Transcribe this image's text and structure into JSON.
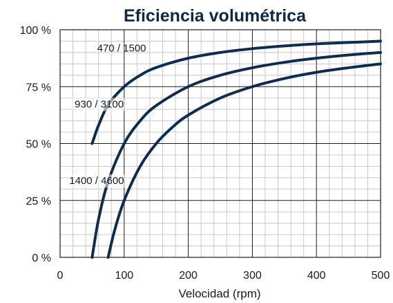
{
  "chart_data": {
    "type": "line",
    "title": "Eficiencia volumétrica",
    "xlabel": "Velocidad (rpm)",
    "ylabel": "",
    "xlim": [
      0,
      500
    ],
    "ylim": [
      0,
      100
    ],
    "x_ticks": [
      0,
      100,
      200,
      300,
      400,
      500
    ],
    "x_tick_labels": [
      "0",
      "100",
      "200",
      "300",
      "400",
      "500"
    ],
    "y_ticks": [
      0,
      25,
      50,
      75,
      100
    ],
    "y_tick_labels": [
      "0 %",
      "25 %",
      "50 %",
      "75 %",
      "100 %"
    ],
    "grid": true,
    "legend": "none",
    "colors": {
      "line": "#0d2d50",
      "major_grid": "#1a1a1a",
      "minor_grid": "#c8c8c8",
      "title": "#0b2a4a"
    },
    "series": [
      {
        "name": "470 / 1500",
        "x": [
          50,
          60,
          75,
          100,
          125,
          150,
          200,
          250,
          300,
          350,
          400,
          450,
          500
        ],
        "y": [
          50,
          58,
          67,
          75,
          80,
          83.4,
          87.5,
          90,
          91.7,
          92.9,
          93.8,
          94.4,
          95
        ]
      },
      {
        "name": "930 / 3100",
        "x": [
          50,
          60,
          75,
          100,
          125,
          150,
          200,
          250,
          300,
          350,
          400,
          450,
          500
        ],
        "y": [
          0,
          16.7,
          33.3,
          50,
          60,
          66.7,
          75,
          80,
          83.3,
          85.7,
          87.5,
          88.9,
          90
        ]
      },
      {
        "name": "1400 / 4600",
        "x": [
          75,
          85,
          100,
          125,
          150,
          175,
          200,
          250,
          300,
          350,
          400,
          450,
          500
        ],
        "y": [
          0,
          11.8,
          25,
          40,
          50,
          57.1,
          62.5,
          70,
          75,
          78.6,
          81.3,
          83.3,
          85
        ]
      }
    ],
    "annotations": [
      {
        "text": "470 / 1500",
        "series": 0
      },
      {
        "text": "930 / 3100",
        "series": 1
      },
      {
        "text": "1400 / 4600",
        "series": 2
      }
    ]
  }
}
